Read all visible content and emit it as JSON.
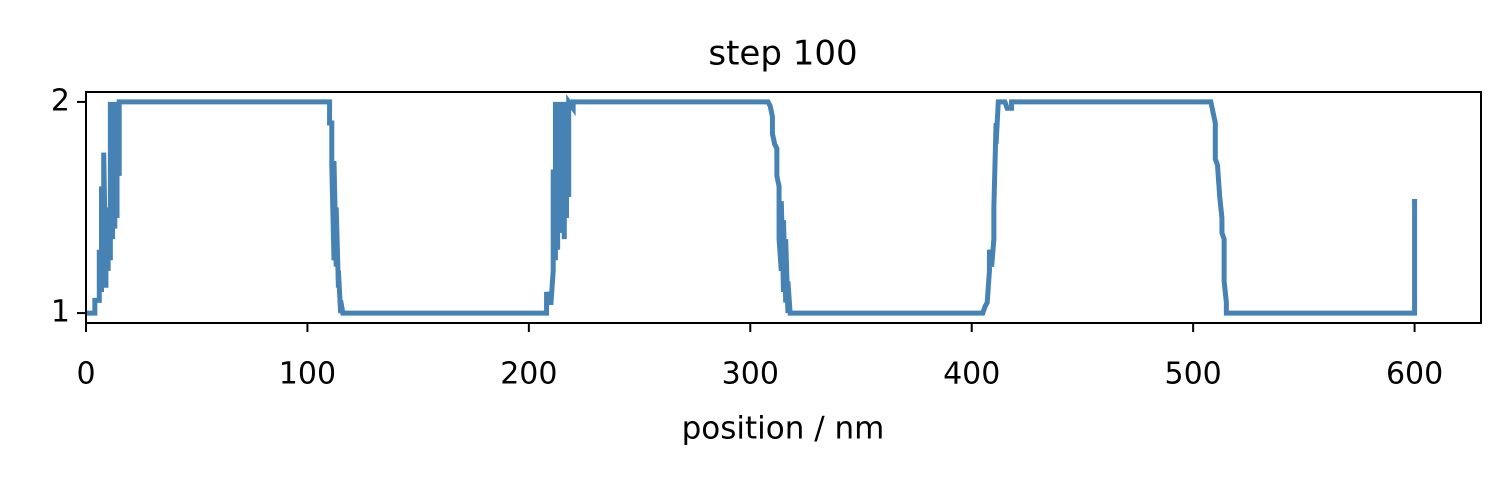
{
  "chart_data": {
    "type": "line",
    "title": "step 100",
    "xlabel": "position / nm",
    "x": [
      0,
      4,
      4,
      6,
      6,
      7,
      7,
      8,
      8,
      9,
      9,
      10,
      10,
      11,
      11,
      12,
      12,
      13,
      13,
      14,
      14,
      15,
      15,
      110,
      110,
      111,
      111,
      112,
      112,
      113,
      113,
      114,
      114,
      115,
      115,
      116,
      208,
      208,
      209,
      210,
      211,
      211,
      212,
      212,
      213,
      213,
      214,
      214,
      215,
      215,
      216,
      216,
      217,
      217,
      218,
      218,
      220,
      220,
      308,
      309,
      310,
      310,
      311,
      312,
      312,
      313,
      313,
      314,
      314,
      315,
      315,
      316,
      316,
      317,
      317,
      318,
      405,
      406,
      407,
      408,
      408,
      409,
      410,
      410,
      411,
      411,
      412,
      415,
      416,
      418,
      418,
      508,
      509,
      510,
      510,
      511,
      512,
      513,
      513,
      514,
      514,
      515,
      515,
      600,
      600
    ],
    "values": [
      1,
      1,
      1.06,
      1.06,
      1.3,
      1.1,
      1.6,
      1.15,
      1.76,
      1.12,
      1.5,
      1.2,
      1.45,
      1.25,
      2,
      1.35,
      2,
      1.4,
      2,
      1.45,
      2,
      1.65,
      2,
      2,
      1.9,
      1.9,
      1.7,
      1.25,
      1.72,
      1.22,
      1.5,
      1.12,
      1.2,
      1,
      1.06,
      1,
      1,
      1.1,
      1.05,
      1.05,
      1.2,
      1.68,
      1.25,
      2,
      1.3,
      2,
      1.38,
      1.9,
      1.5,
      2,
      1.35,
      2,
      1.45,
      2,
      1.55,
      2,
      1.97,
      2,
      2,
      1.98,
      1.93,
      1.85,
      1.8,
      1.78,
      1.65,
      1.6,
      1.35,
      1.2,
      1.53,
      1.1,
      1.44,
      1.05,
      1.35,
      1,
      1.15,
      1,
      1,
      1.03,
      1.05,
      1.2,
      1.3,
      1.22,
      1.35,
      1.5,
      1.9,
      1.8,
      2,
      2,
      1.97,
      1.97,
      2,
      2,
      1.95,
      1.9,
      1.73,
      1.7,
      1.55,
      1.45,
      1.38,
      1.35,
      1.15,
      1.05,
      1,
      1,
      1.54
    ],
    "color": "#4682b4",
    "xlim": [
      0,
      630
    ],
    "ylim": [
      0.953,
      2.047
    ],
    "xticks": [
      0,
      100,
      200,
      300,
      400,
      500,
      600
    ],
    "yticks": [
      1,
      2
    ]
  }
}
